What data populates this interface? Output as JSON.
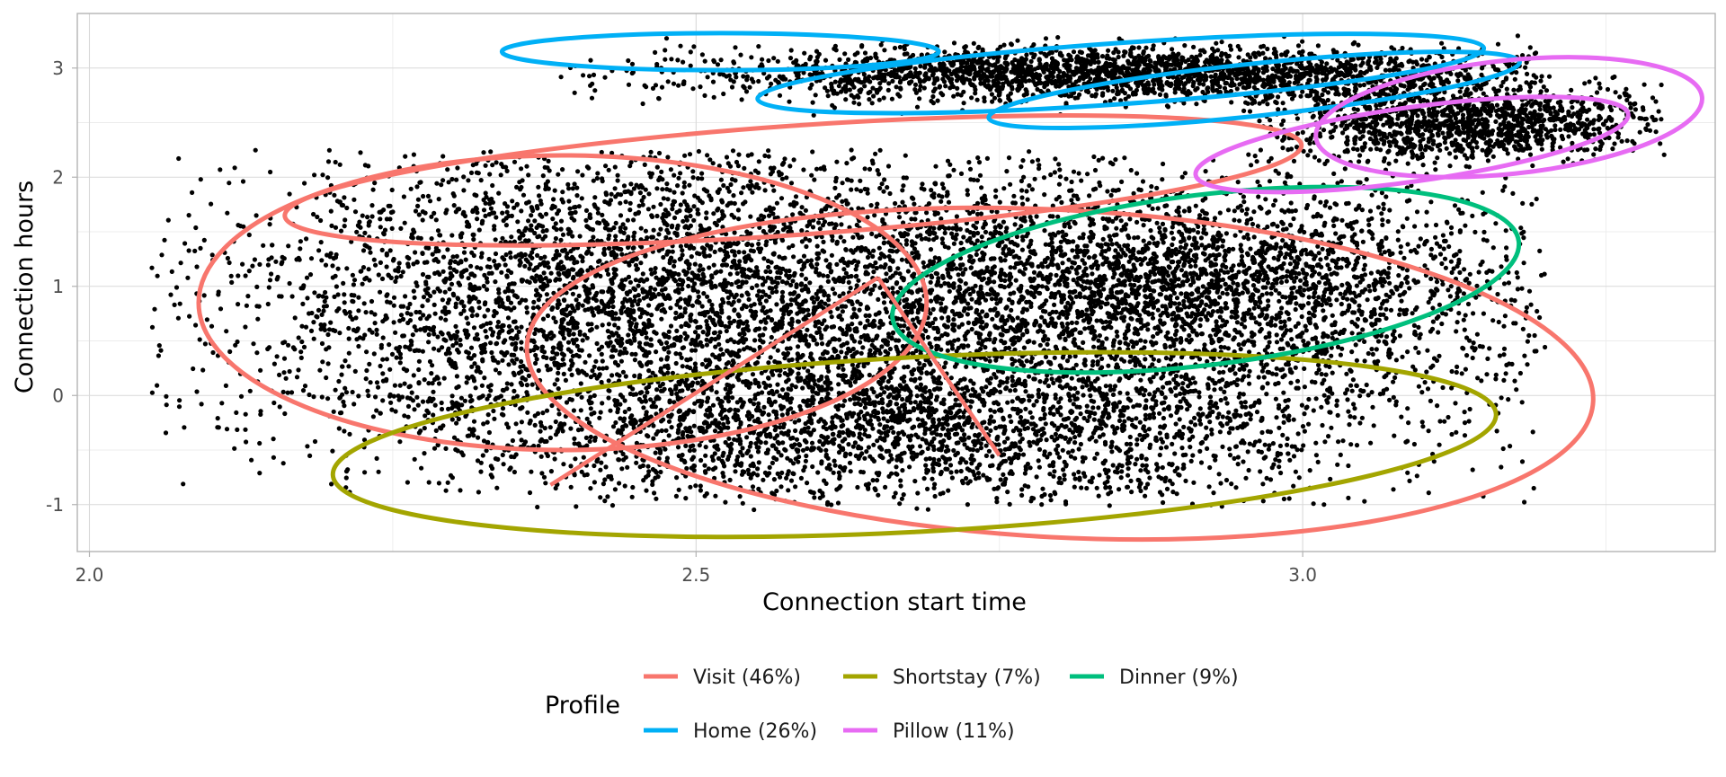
{
  "chart_data": {
    "type": "scatter",
    "xlabel": "Connection start time",
    "ylabel": "Connection hours",
    "xlim": [
      1.99,
      3.34
    ],
    "ylim": [
      -1.43,
      3.5
    ],
    "x_ticks": [
      {
        "value": 2.0,
        "label": "2.0"
      },
      {
        "value": 2.5,
        "label": "2.5"
      },
      {
        "value": 3.0,
        "label": "3.0"
      }
    ],
    "y_ticks": [
      {
        "value": -1,
        "label": "-1"
      },
      {
        "value": 0,
        "label": "0"
      },
      {
        "value": 1,
        "label": "1"
      },
      {
        "value": 2,
        "label": "2"
      },
      {
        "value": 3,
        "label": "3"
      }
    ],
    "grid": true,
    "point_color": "#000000",
    "legend": {
      "title": "Profile",
      "position": "bottom",
      "entries": [
        {
          "profile": "Visit",
          "label": "Visit (46%)",
          "color": "#F8766D"
        },
        {
          "profile": "Shortstay",
          "label": "Shortstay (7%)",
          "color": "#A3A500"
        },
        {
          "profile": "Dinner",
          "label": "Dinner (9%)",
          "color": "#00BF7D"
        },
        {
          "profile": "Home",
          "label": "Home (26%)",
          "color": "#00B0F6"
        },
        {
          "profile": "Pillow",
          "label": "Pillow (11%)",
          "color": "#E76BF3"
        }
      ]
    },
    "ellipses": [
      {
        "profile": "Visit",
        "cx": 2.39,
        "cy": 0.85,
        "rx": 0.3,
        "ry": 1.35,
        "angle_deg": 0
      },
      {
        "profile": "Visit",
        "cx": 2.58,
        "cy": 1.97,
        "rx": 0.42,
        "ry": 0.5,
        "angle_deg": -4
      },
      {
        "profile": "Visit",
        "cx": 2.8,
        "cy": 0.2,
        "rx": 0.44,
        "ry": 1.5,
        "angle_deg": 3
      },
      {
        "profile": "Shortstay",
        "cx": 2.68,
        "cy": -0.45,
        "rx": 0.48,
        "ry": 0.8,
        "angle_deg": -3
      },
      {
        "profile": "Dinner",
        "cx": 2.92,
        "cy": 1.06,
        "rx": 0.26,
        "ry": 0.78,
        "angle_deg": -7
      },
      {
        "profile": "Home",
        "cx": 2.52,
        "cy": 3.15,
        "rx": 0.18,
        "ry": 0.17,
        "angle_deg": 0
      },
      {
        "profile": "Home",
        "cx": 2.85,
        "cy": 2.95,
        "rx": 0.3,
        "ry": 0.28,
        "angle_deg": -4
      },
      {
        "profile": "Home",
        "cx": 2.96,
        "cy": 2.8,
        "rx": 0.22,
        "ry": 0.24,
        "angle_deg": -6
      },
      {
        "profile": "Pillow",
        "cx": 3.17,
        "cy": 2.55,
        "rx": 0.16,
        "ry": 0.52,
        "angle_deg": -6
      },
      {
        "profile": "Pillow",
        "cx": 3.09,
        "cy": 2.3,
        "rx": 0.18,
        "ry": 0.34,
        "angle_deg": -8
      }
    ],
    "axis_segments": [
      {
        "profile": "Visit",
        "x1": 2.65,
        "y1": 1.08,
        "x2": 2.38,
        "y2": -0.82
      },
      {
        "profile": "Visit",
        "x1": 2.65,
        "y1": 1.08,
        "x2": 2.75,
        "y2": -0.55
      }
    ],
    "point_clusters": [
      {
        "cx": 2.45,
        "cy": 0.9,
        "sx": 0.17,
        "sy": 0.75,
        "xmin": 2.05,
        "xmax": 2.85,
        "ymin": -0.9,
        "ymax": 2.25,
        "n": 4200
      },
      {
        "cx": 2.85,
        "cy": 0.7,
        "sx": 0.17,
        "sy": 0.75,
        "xmin": 2.45,
        "xmax": 3.2,
        "ymin": -1.0,
        "ymax": 2.2,
        "n": 3400
      },
      {
        "cx": 2.65,
        "cy": -0.35,
        "sx": 0.19,
        "sy": 0.35,
        "xmin": 2.2,
        "xmax": 3.0,
        "ymin": -1.05,
        "ymax": 0.5,
        "n": 1600
      },
      {
        "cx": 2.93,
        "cy": 1.05,
        "sx": 0.13,
        "sy": 0.35,
        "xmin": 2.65,
        "xmax": 3.2,
        "ymin": 0.2,
        "ymax": 1.9,
        "n": 1100
      },
      {
        "cx": 2.85,
        "cy": 2.95,
        "sx": 0.18,
        "sy": 0.12,
        "xmin": 2.37,
        "xmax": 3.2,
        "ymin": 2.55,
        "ymax": 3.3,
        "n": 2400
      },
      {
        "cx": 3.13,
        "cy": 2.5,
        "sx": 0.08,
        "sy": 0.18,
        "xmin": 2.95,
        "xmax": 3.3,
        "ymin": 2.05,
        "ymax": 3.0,
        "n": 1300
      }
    ]
  }
}
